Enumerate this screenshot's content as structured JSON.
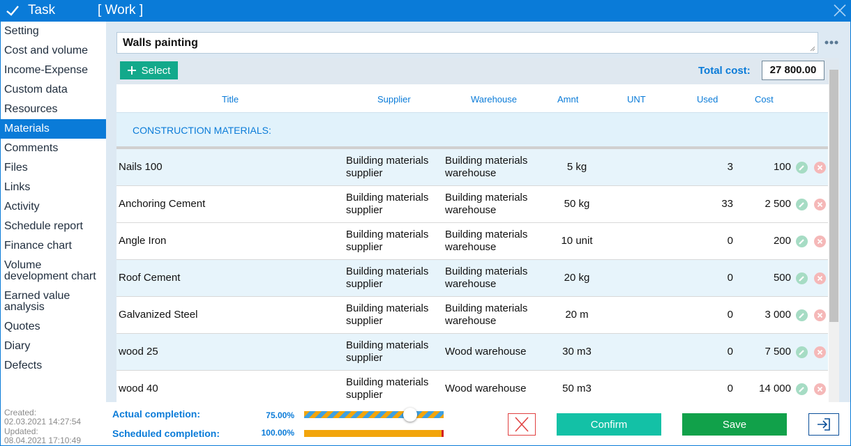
{
  "titlebar": {
    "app_title": "Task",
    "doc_title": "[ Work ]"
  },
  "sidebar": {
    "items": [
      {
        "label": "Setting"
      },
      {
        "label": "Cost and volume"
      },
      {
        "label": "Income-Expense"
      },
      {
        "label": "Custom data"
      },
      {
        "label": "Resources"
      },
      {
        "label": "Materials",
        "active": true
      },
      {
        "label": "Comments"
      },
      {
        "label": "Files"
      },
      {
        "label": "Links"
      },
      {
        "label": "Activity"
      },
      {
        "label": "Schedule report"
      },
      {
        "label": "Finance chart"
      },
      {
        "label": "Volume development chart"
      },
      {
        "label": "Earned value analysis"
      },
      {
        "label": "Quotes"
      },
      {
        "label": "Diary"
      },
      {
        "label": "Defects"
      }
    ]
  },
  "task": {
    "name": "Walls painting"
  },
  "toolbar": {
    "select_label": "Select",
    "total_label": "Total cost:",
    "total_value": "27 800.00"
  },
  "table": {
    "columns": [
      "Title",
      "Supplier",
      "Warehouse",
      "Amnt",
      "UNT",
      "Used",
      "Cost"
    ],
    "group_label": "CONSTRUCTION MATERIALS:",
    "rows": [
      {
        "title": "Nails 100",
        "supplier": "Building materials supplier",
        "warehouse": "Building materials warehouse",
        "amnt": "5 kg",
        "used": "3",
        "cost": "100"
      },
      {
        "title": "Anchoring Cement",
        "supplier": "Building materials supplier",
        "warehouse": "Building materials warehouse",
        "amnt": "50 kg",
        "used": "33",
        "cost": "2 500"
      },
      {
        "title": "Angle Iron",
        "supplier": "Building materials supplier",
        "warehouse": "Building materials warehouse",
        "amnt": "10 unit",
        "used": "0",
        "cost": "200"
      },
      {
        "title": "Roof Cement",
        "supplier": "Building materials supplier",
        "warehouse": "Building materials warehouse",
        "amnt": "20 kg",
        "used": "0",
        "cost": "500"
      },
      {
        "title": "Galvanized Steel",
        "supplier": "Building materials supplier",
        "warehouse": "Building materials warehouse",
        "amnt": "20 m",
        "used": "0",
        "cost": "3 000"
      },
      {
        "title": "wood 25",
        "supplier": "Building materials supplier",
        "warehouse": "Wood warehouse",
        "amnt": "30 m3",
        "used": "0",
        "cost": "7 500"
      },
      {
        "title": "wood 40",
        "supplier": "Building materials supplier",
        "warehouse": "Wood warehouse",
        "amnt": "50 m3",
        "used": "0",
        "cost": "14 000"
      }
    ]
  },
  "footer": {
    "created_label": "Created:",
    "created_value": "02.03.2021 14:27:54",
    "updated_label": "Updated:",
    "updated_value": "08.04.2021 17:10:49",
    "actual_label": "Actual completion:",
    "actual_pct": "75.00%",
    "actual_fraction": 0.75,
    "scheduled_label": "Scheduled completion:",
    "scheduled_pct": "100.00%",
    "scheduled_fraction": 1.0,
    "confirm_label": "Confirm",
    "save_label": "Save"
  },
  "colors": {
    "accent": "#0a7bd8",
    "select": "#13a98b",
    "confirm": "#13c1a6",
    "save": "#11a14a",
    "row_alt": "#e7f4fb"
  },
  "icons": [
    "check-icon",
    "close-icon",
    "more-icon",
    "plus-icon",
    "edit-icon",
    "delete-icon",
    "cancel-x-icon",
    "exit-icon"
  ]
}
